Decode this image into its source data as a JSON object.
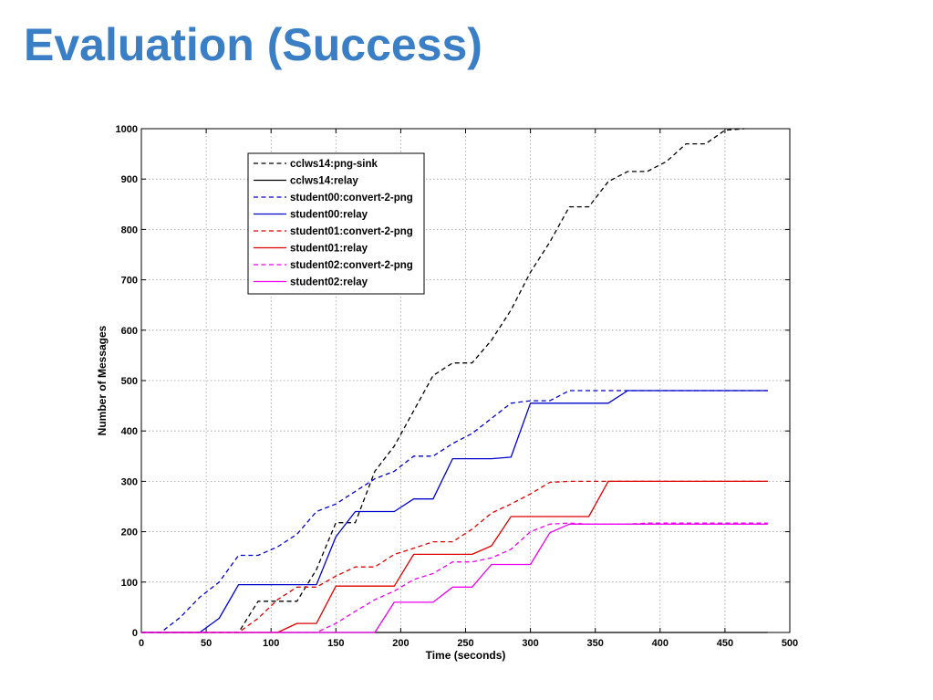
{
  "slide": {
    "title": "Evaluation (Success)"
  },
  "chart_data": {
    "type": "line",
    "title": "",
    "xlabel": "Time (seconds)",
    "ylabel": "Number of Messages",
    "xlim": [
      0,
      500
    ],
    "ylim": [
      0,
      1000
    ],
    "xticks": [
      0,
      50,
      100,
      150,
      200,
      250,
      300,
      350,
      400,
      450,
      500
    ],
    "yticks": [
      0,
      100,
      200,
      300,
      400,
      500,
      600,
      700,
      800,
      900,
      1000
    ],
    "grid": true,
    "legend_position": "top-left",
    "series": [
      {
        "name": "cclws14:png-sink",
        "color": "#000000",
        "dash": true,
        "x": [
          0,
          75,
          90,
          100,
          110,
          120,
          135,
          150,
          165,
          180,
          195,
          210,
          225,
          240,
          255,
          270,
          285,
          300,
          315,
          330,
          345,
          360,
          375,
          390,
          405,
          420,
          435,
          450,
          465
        ],
        "y": [
          0,
          0,
          62,
          62,
          62,
          62,
          125,
          218,
          218,
          320,
          370,
          440,
          510,
          535,
          535,
          580,
          640,
          715,
          775,
          845,
          845,
          895,
          915,
          915,
          935,
          970,
          970,
          997,
          1000
        ]
      },
      {
        "name": "cclws14:relay",
        "color": "#000000",
        "dash": false,
        "x": [
          0,
          483
        ],
        "y": [
          0,
          0
        ]
      },
      {
        "name": "student00:convert-2-png",
        "color": "#0000cc",
        "dash": true,
        "x": [
          0,
          15,
          30,
          45,
          60,
          75,
          90,
          105,
          120,
          135,
          150,
          165,
          180,
          195,
          210,
          225,
          240,
          255,
          270,
          285,
          300,
          315,
          330,
          345,
          360,
          375,
          483
        ],
        "y": [
          0,
          0,
          30,
          70,
          100,
          153,
          153,
          170,
          195,
          240,
          255,
          280,
          305,
          320,
          350,
          350,
          375,
          395,
          425,
          455,
          460,
          460,
          480,
          480,
          480,
          480,
          480
        ]
      },
      {
        "name": "student00:relay",
        "color": "#0000cc",
        "dash": false,
        "x": [
          0,
          45,
          60,
          75,
          90,
          105,
          120,
          135,
          150,
          165,
          180,
          195,
          210,
          225,
          240,
          255,
          270,
          285,
          300,
          315,
          330,
          345,
          360,
          375,
          483
        ],
        "y": [
          0,
          0,
          28,
          95,
          95,
          95,
          95,
          95,
          190,
          240,
          240,
          240,
          265,
          265,
          345,
          345,
          345,
          348,
          455,
          455,
          455,
          455,
          455,
          480,
          480
        ]
      },
      {
        "name": "student01:convert-2-png",
        "color": "#dd0000",
        "dash": true,
        "x": [
          0,
          75,
          90,
          105,
          120,
          135,
          150,
          165,
          180,
          195,
          210,
          225,
          240,
          255,
          270,
          285,
          300,
          315,
          330,
          483
        ],
        "y": [
          0,
          0,
          28,
          65,
          90,
          90,
          112,
          130,
          130,
          155,
          167,
          180,
          180,
          205,
          237,
          255,
          275,
          298,
          300,
          300
        ]
      },
      {
        "name": "student01:relay",
        "color": "#dd0000",
        "dash": false,
        "x": [
          0,
          105,
          120,
          135,
          150,
          165,
          180,
          195,
          210,
          225,
          240,
          255,
          270,
          285,
          300,
          315,
          330,
          345,
          360,
          483
        ],
        "y": [
          0,
          0,
          18,
          18,
          92,
          92,
          92,
          92,
          155,
          155,
          155,
          155,
          172,
          230,
          230,
          230,
          230,
          230,
          300,
          300
        ]
      },
      {
        "name": "student02:convert-2-png",
        "color": "#ee00ee",
        "dash": true,
        "x": [
          0,
          135,
          150,
          165,
          180,
          195,
          210,
          225,
          240,
          255,
          270,
          285,
          300,
          315,
          330,
          345,
          360,
          375,
          390,
          483
        ],
        "y": [
          0,
          0,
          18,
          42,
          65,
          82,
          105,
          117,
          140,
          140,
          148,
          165,
          200,
          215,
          217,
          215,
          215,
          215,
          217,
          217
        ]
      },
      {
        "name": "student02:relay",
        "color": "#ee00ee",
        "dash": false,
        "x": [
          0,
          180,
          195,
          210,
          225,
          240,
          255,
          270,
          285,
          300,
          315,
          330,
          345,
          360,
          375,
          483
        ],
        "y": [
          0,
          0,
          60,
          60,
          60,
          90,
          90,
          135,
          135,
          135,
          198,
          215,
          215,
          215,
          215,
          215
        ]
      }
    ]
  }
}
